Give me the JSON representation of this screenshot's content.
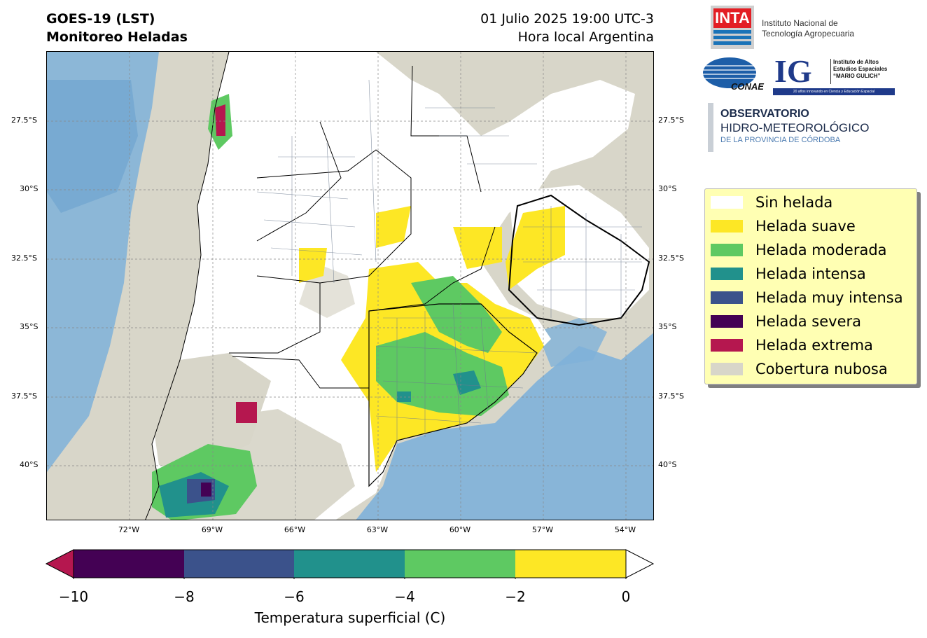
{
  "header": {
    "title_line1": "GOES-19 (LST)",
    "title_line2": "Monitoreo Heladas",
    "date_line1": "01 Julio 2025 19:00 UTC-3",
    "date_line2": "Hora local Argentina"
  },
  "map": {
    "lat_ticks_left": [
      "27.5°S",
      "30°S",
      "32.5°S",
      "35°S",
      "37.5°S",
      "40°S"
    ],
    "lat_ticks_right": [
      "27.5°S",
      "30°S",
      "32.5°S",
      "35°S",
      "37.5°S",
      "40°S"
    ],
    "lon_ticks": [
      "72°W",
      "69°W",
      "66°W",
      "63°W",
      "60°W",
      "57°W",
      "54°W"
    ],
    "colors": {
      "cloud": "#d8d6c9",
      "no_frost": "#ffffff",
      "mild": "#fde725",
      "moderate": "#5ec962",
      "intense": "#21918c",
      "very_intense": "#3b528b",
      "severe": "#440154",
      "extreme": "#b5174f",
      "ocean": "#7fb1d9"
    }
  },
  "logos": {
    "inta_mark": "INTA",
    "inta_name_line1": "Instituto Nacional de",
    "inta_name_line2": "Tecnología Agropecuaria",
    "conae": "CONAE",
    "ig_mark": "IG",
    "ig_line1": "Instituto de Altos",
    "ig_line2": "Estudios Espaciales",
    "ig_line3": "“MARIO GULICH”",
    "ig_tagline": "20 años innovando en Ciencia y Educación Espacial",
    "obs_line1": "OBSERVATORIO",
    "obs_line2": "HIDRO-METEOROLÓGICO",
    "obs_line3": "DE LA PROVINCIA DE CÓRDOBA"
  },
  "legend": {
    "items": [
      {
        "label": "Sin helada",
        "color": "#ffffff"
      },
      {
        "label": "Helada suave",
        "color": "#fde725"
      },
      {
        "label": "Helada moderada",
        "color": "#5ec962"
      },
      {
        "label": "Helada intensa",
        "color": "#21918c"
      },
      {
        "label": "Helada muy intensa",
        "color": "#3b528b"
      },
      {
        "label": "Helada severa",
        "color": "#440154"
      },
      {
        "label": "Helada extrema",
        "color": "#b5174f"
      },
      {
        "label": "Cobertura nubosa",
        "color": "#d8d6c9"
      }
    ]
  },
  "colorbar": {
    "title": "Temperatura superficial (C)",
    "ticks": [
      "−10",
      "−8",
      "−6",
      "−4",
      "−2",
      "0"
    ],
    "segment_colors": [
      "#440154",
      "#3b528b",
      "#21918c",
      "#5ec962",
      "#fde725"
    ],
    "under_color": "#b5174f",
    "over_color": "#ffffff"
  }
}
